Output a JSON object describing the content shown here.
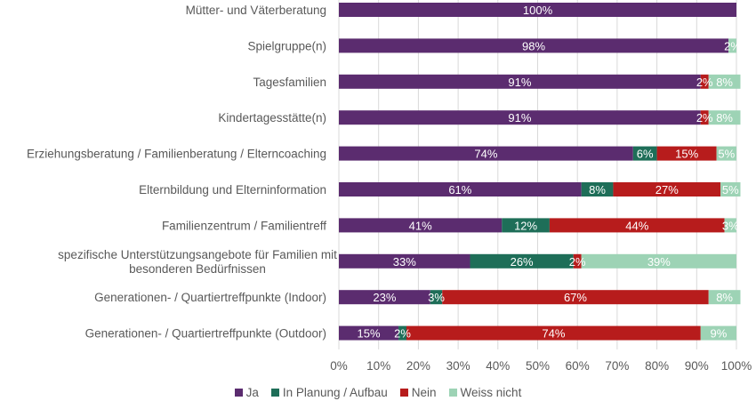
{
  "chart_data": {
    "type": "bar",
    "orientation": "horizontal",
    "stacked": true,
    "percent": true,
    "categories": [
      "Mütter- und Väterberatung",
      "Spielgruppe(n)",
      "Tagesfamilien",
      "Kindertagesstätte(n)",
      "Erziehungsberatung / Familienberatung / Elterncoaching",
      "Elternbildung und Elterninformation",
      "Familienzentrum / Familientreff",
      "spezifische Unterstützungsangebote für Familien mit besonderen Bedürfnissen",
      "Generationen- / Quartiertreffpunkte (Indoor)",
      "Generationen- / Quartiertreffpunkte (Outdoor)"
    ],
    "series": [
      {
        "name": "Ja",
        "color": "#5b2c6f",
        "values": [
          100,
          98,
          91,
          91,
          74,
          61,
          41,
          33,
          23,
          15
        ],
        "labels": [
          "100%",
          "98%",
          "91%",
          "91%",
          "74%",
          "61%",
          "41%",
          "33%",
          "23%",
          "15%"
        ]
      },
      {
        "name": "In Planung / Aufbau",
        "color": "#1e6e58",
        "values": [
          0,
          0,
          0,
          0,
          6,
          8,
          12,
          26,
          3,
          2
        ],
        "labels": [
          "",
          "",
          "",
          "",
          "6%",
          "8%",
          "12%",
          "26%",
          "3%",
          "2%"
        ]
      },
      {
        "name": "Nein",
        "color": "#b71c1c",
        "values": [
          0,
          0,
          2,
          2,
          15,
          27,
          44,
          2,
          67,
          74
        ],
        "labels": [
          "",
          "",
          "2%",
          "2%",
          "15%",
          "27%",
          "44%",
          "2%",
          "67%",
          "74%"
        ]
      },
      {
        "name": "Weiss nicht",
        "color": "#9dd3b5",
        "values": [
          0,
          2,
          8,
          8,
          5,
          5,
          3,
          39,
          8,
          9
        ],
        "labels": [
          "",
          "2%",
          "8%",
          "8%",
          "5%",
          "5%",
          "3%",
          "39%",
          "8%",
          "9%"
        ]
      }
    ],
    "xlim": [
      0,
      100
    ],
    "xticks": [
      "0%",
      "10%",
      "20%",
      "30%",
      "40%",
      "50%",
      "60%",
      "70%",
      "80%",
      "90%",
      "100%"
    ],
    "grid": true,
    "legend_position": "bottom"
  }
}
